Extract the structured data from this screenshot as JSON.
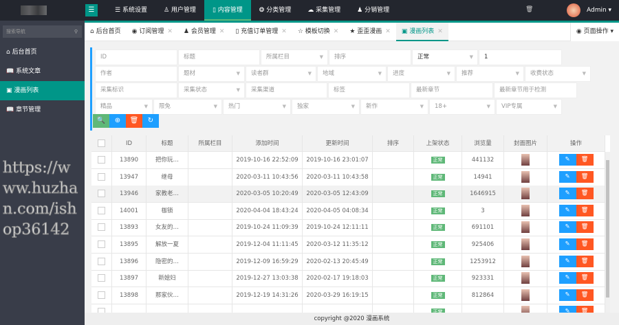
{
  "header": {
    "menu_icon": "☰",
    "nav": [
      {
        "icon": "☰",
        "label": "系统设置"
      },
      {
        "icon": "♙",
        "label": "用户管理"
      },
      {
        "icon": "▯",
        "label": "内容管理",
        "active": true
      },
      {
        "icon": "❂",
        "label": "分类管理"
      },
      {
        "icon": "☁",
        "label": "采集管理"
      },
      {
        "icon": "♟",
        "label": "分销管理"
      }
    ],
    "user": "Admin ▾",
    "trash_icon": "🗑"
  },
  "sidebar": {
    "search_placeholder": "搜索导航",
    "items": [
      {
        "icon": "⌂",
        "label": "后台首页"
      },
      {
        "icon": "📖",
        "label": "系统文章"
      },
      {
        "icon": "▣",
        "label": "漫画列表",
        "active": true
      },
      {
        "icon": "📖",
        "label": "章节管理"
      }
    ]
  },
  "tabs": {
    "items": [
      {
        "icon": "⌂",
        "label": "后台首页",
        "closable": false
      },
      {
        "icon": "◉",
        "label": "订阅管理",
        "closable": true
      },
      {
        "icon": "♟",
        "label": "会员管理",
        "closable": true
      },
      {
        "icon": "▯",
        "label": "充值订单管理",
        "closable": true
      },
      {
        "icon": "☆",
        "label": "模板切换",
        "closable": true
      },
      {
        "icon": "★",
        "label": "歪歪漫画",
        "closable": true
      },
      {
        "icon": "▣",
        "label": "漫画列表",
        "closable": true,
        "active": true
      }
    ],
    "close": "✕",
    "page_ops": "◉ 页面操作 ▾"
  },
  "filters": [
    [
      {
        "text": "ID"
      },
      {
        "text": "标题"
      },
      {
        "text": "所属栏目",
        "select": true
      },
      {
        "text": "排序"
      },
      {
        "text": "正常",
        "select": true,
        "value": true
      },
      {
        "text": "1",
        "value": true
      }
    ],
    [
      {
        "text": "作者"
      },
      {
        "text": "题材",
        "select": true
      },
      {
        "text": "读者群",
        "select": true
      },
      {
        "text": "地域",
        "select": true
      },
      {
        "text": "进度",
        "select": true
      },
      {
        "text": "推荐",
        "select": true
      },
      {
        "text": "收费状态",
        "select": true
      }
    ],
    [
      {
        "text": "采集标识"
      },
      {
        "text": "采集状态",
        "select": true
      },
      {
        "text": "采集渠道"
      },
      {
        "text": "标签"
      },
      {
        "text": "最新章节"
      },
      {
        "text": "最新章节用于检测"
      }
    ],
    [
      {
        "text": "精品",
        "select": true
      },
      {
        "text": "限免",
        "select": true
      },
      {
        "text": "热门",
        "select": true
      },
      {
        "text": "独家",
        "select": true
      },
      {
        "text": "新作",
        "select": true
      },
      {
        "text": "18+",
        "select": true
      },
      {
        "text": "VIP专属",
        "select": true
      }
    ]
  ],
  "actions": [
    {
      "name": "search",
      "icon": "🔍",
      "color": "#5fb878"
    },
    {
      "name": "add",
      "icon": "⊕",
      "color": "#1e9fff"
    },
    {
      "name": "delete",
      "icon": "🗑",
      "color": "#ff5722"
    },
    {
      "name": "refresh",
      "icon": "↻",
      "color": "#1e9fff"
    }
  ],
  "table": {
    "columns": [
      "",
      "ID",
      "标题",
      "所属栏目",
      "添加时间",
      "更新时间",
      "排序",
      "上架状态",
      "浏览量",
      "封面图片",
      "操作"
    ],
    "rows": [
      {
        "id": "13890",
        "title": "把你玩…",
        "section": "",
        "added": "2019-10-16 22:52:09",
        "updated": "2019-10-16 23:01:07",
        "sort": "",
        "status": "正常",
        "views": "441132"
      },
      {
        "id": "13947",
        "title": "继母",
        "section": "",
        "added": "2020-03-11 10:43:56",
        "updated": "2020-03-11 10:43:58",
        "sort": "",
        "status": "正常",
        "views": "14941"
      },
      {
        "id": "13946",
        "title": "家教老…",
        "section": "",
        "added": "2020-03-05 10:20:49",
        "updated": "2020-03-05 12:43:09",
        "sort": "",
        "status": "正常",
        "views": "1646915"
      },
      {
        "id": "14001",
        "title": "枷锁",
        "section": "",
        "added": "2020-04-04 18:43:24",
        "updated": "2020-04-05 04:08:34",
        "sort": "",
        "status": "正常",
        "views": "3"
      },
      {
        "id": "13893",
        "title": "女友的…",
        "section": "",
        "added": "2019-10-24 11:09:39",
        "updated": "2019-10-24 12:11:11",
        "sort": "",
        "status": "正常",
        "views": "691101"
      },
      {
        "id": "13895",
        "title": "解放一夏",
        "section": "",
        "added": "2019-12-04 11:11:45",
        "updated": "2020-03-12 11:35:12",
        "sort": "",
        "status": "正常",
        "views": "925406"
      },
      {
        "id": "13896",
        "title": "隐密的…",
        "section": "",
        "added": "2019-12-09 16:59:29",
        "updated": "2020-02-13 20:45:49",
        "sort": "",
        "status": "正常",
        "views": "1253912"
      },
      {
        "id": "13897",
        "title": "新媳妇",
        "section": "",
        "added": "2019-12-27 13:03:38",
        "updated": "2020-02-17 19:18:03",
        "sort": "",
        "status": "正常",
        "views": "923331"
      },
      {
        "id": "13898",
        "title": "那家伙…",
        "section": "",
        "added": "2019-12-19 14:31:26",
        "updated": "2020-03-29 16:19:15",
        "sort": "",
        "status": "正常",
        "views": "812864"
      },
      {
        "id": "",
        "title": "",
        "section": "",
        "added": "",
        "updated": "",
        "sort": "",
        "status": "正常",
        "views": ""
      }
    ],
    "edit_icon": "✎",
    "delete_icon": "🗑"
  },
  "footer": "copyright @2020 漫画系统",
  "watermark": "https://www.huzhan.com/ishop36142"
}
